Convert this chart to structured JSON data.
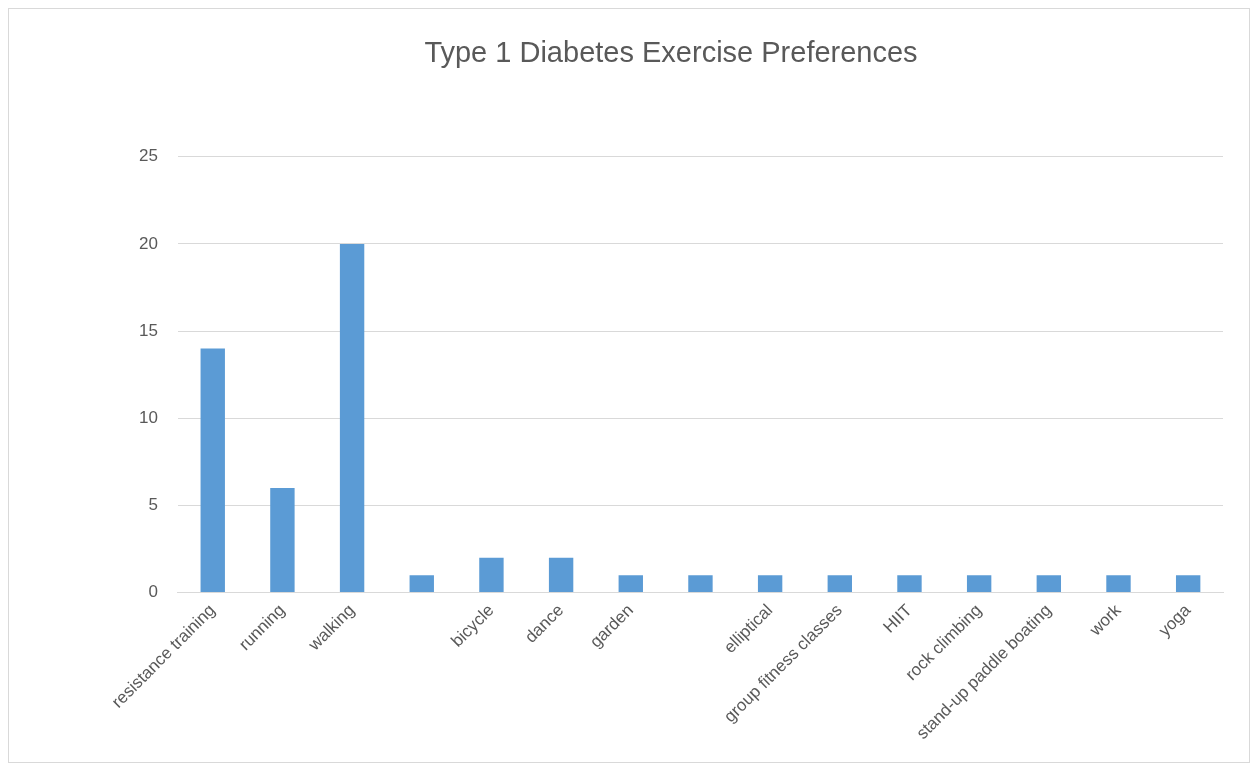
{
  "chart_data": {
    "type": "bar",
    "title": "Type 1 Diabetes Exercise Preferences",
    "categories": [
      "resistance training",
      "running",
      "walking",
      null,
      "bicycle",
      "dance",
      "garden",
      null,
      "elliptical",
      "group fitness classes",
      "HIIT",
      "rock climbing",
      "stand-up paddle boating",
      "work",
      "yoga"
    ],
    "values": [
      14,
      6,
      20,
      1,
      2,
      2,
      1,
      1,
      1,
      1,
      1,
      1,
      1,
      1,
      1
    ],
    "color": "#5b9bd5",
    "ylim": [
      0,
      25
    ],
    "yticks": [
      0,
      5,
      10,
      15,
      20,
      25
    ],
    "grid": "y"
  }
}
